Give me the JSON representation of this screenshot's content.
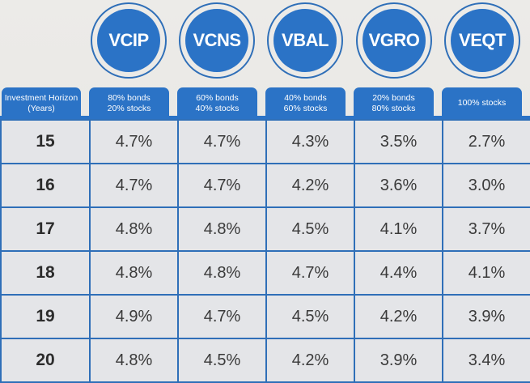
{
  "chart_data": {
    "type": "table",
    "title": "",
    "row_header_label": "Investment Horizon (Years)",
    "columns": [
      {
        "ticker": "VCIP",
        "allocation": "80% bonds 20% stocks"
      },
      {
        "ticker": "VCNS",
        "allocation": "60% bonds 40% stocks"
      },
      {
        "ticker": "VBAL",
        "allocation": "40% bonds 60% stocks"
      },
      {
        "ticker": "VGRO",
        "allocation": "20% bonds 80% stocks"
      },
      {
        "ticker": "VEQT",
        "allocation": "100% stocks"
      }
    ],
    "rows": [
      {
        "year": "15",
        "values": [
          "4.7%",
          "4.7%",
          "4.3%",
          "3.5%",
          "2.7%"
        ]
      },
      {
        "year": "16",
        "values": [
          "4.7%",
          "4.7%",
          "4.2%",
          "3.6%",
          "3.0%"
        ]
      },
      {
        "year": "17",
        "values": [
          "4.8%",
          "4.8%",
          "4.5%",
          "4.1%",
          "3.7%"
        ]
      },
      {
        "year": "18",
        "values": [
          "4.8%",
          "4.8%",
          "4.7%",
          "4.4%",
          "4.1%"
        ]
      },
      {
        "year": "19",
        "values": [
          "4.9%",
          "4.7%",
          "4.5%",
          "4.2%",
          "3.9%"
        ]
      },
      {
        "year": "20",
        "values": [
          "4.8%",
          "4.5%",
          "4.2%",
          "3.9%",
          "3.4%"
        ]
      }
    ]
  },
  "header": {
    "horizon_line1": "Investment Horizon",
    "horizon_line2": "(Years)",
    "tabs": [
      {
        "l1": "80% bonds",
        "l2": "20% stocks"
      },
      {
        "l1": "60% bonds",
        "l2": "40% stocks"
      },
      {
        "l1": "40% bonds",
        "l2": "60% stocks"
      },
      {
        "l1": "20% bonds",
        "l2": "80% stocks"
      },
      {
        "l1": "100% stocks",
        "l2": ""
      }
    ],
    "tickers": [
      "VCIP",
      "VCNS",
      "VBAL",
      "VGRO",
      "VEQT"
    ]
  },
  "colors": {
    "accent": "#2b73c6",
    "cell_bg": "#e4e5e8",
    "page_bg": "#e9e8e5"
  }
}
